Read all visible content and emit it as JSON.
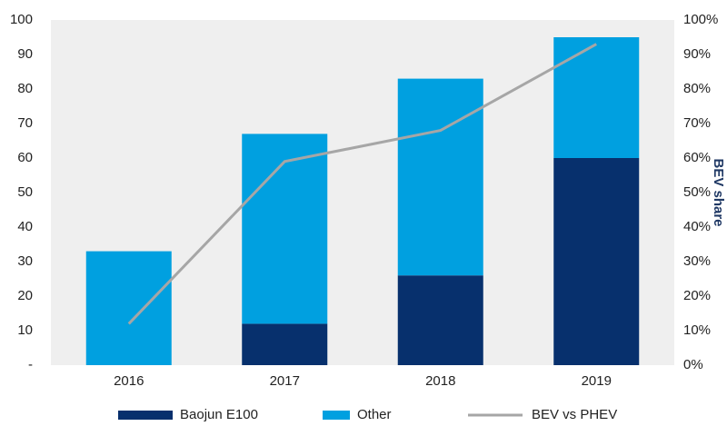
{
  "chart_data": {
    "type": "bar",
    "categories": [
      "2016",
      "2017",
      "2018",
      "2019"
    ],
    "series": [
      {
        "name": "Baojun E100",
        "color": "#07306d",
        "values": [
          0,
          12,
          26,
          60
        ]
      },
      {
        "name": "Other",
        "color": "#00a0e0",
        "values": [
          33,
          55,
          57,
          35
        ]
      },
      {
        "name": "BEV vs PHEV",
        "color": "#a6a6a6",
        "type": "line",
        "axis": "y2",
        "values": [
          12,
          59,
          68,
          93
        ]
      }
    ],
    "stacked": true,
    "ylim": [
      0,
      100
    ],
    "yticks": [
      {
        "value": 0,
        "label": "-"
      },
      10,
      20,
      30,
      40,
      50,
      60,
      70,
      80,
      90,
      100
    ],
    "y2label": "BEV share",
    "y2lim": [
      0,
      100
    ],
    "y2ticks": [
      {
        "value": 0,
        "label": "0%"
      },
      {
        "value": 10,
        "label": "10%"
      },
      {
        "value": 20,
        "label": "20%"
      },
      {
        "value": 30,
        "label": "30%"
      },
      {
        "value": 40,
        "label": "40%"
      },
      {
        "value": 50,
        "label": "50%"
      },
      {
        "value": 60,
        "label": "60%"
      },
      {
        "value": 70,
        "label": "70%"
      },
      {
        "value": 80,
        "label": "80%"
      },
      {
        "value": 90,
        "label": "90%"
      },
      {
        "value": 100,
        "label": "100%"
      }
    ],
    "legend": "bottom"
  }
}
